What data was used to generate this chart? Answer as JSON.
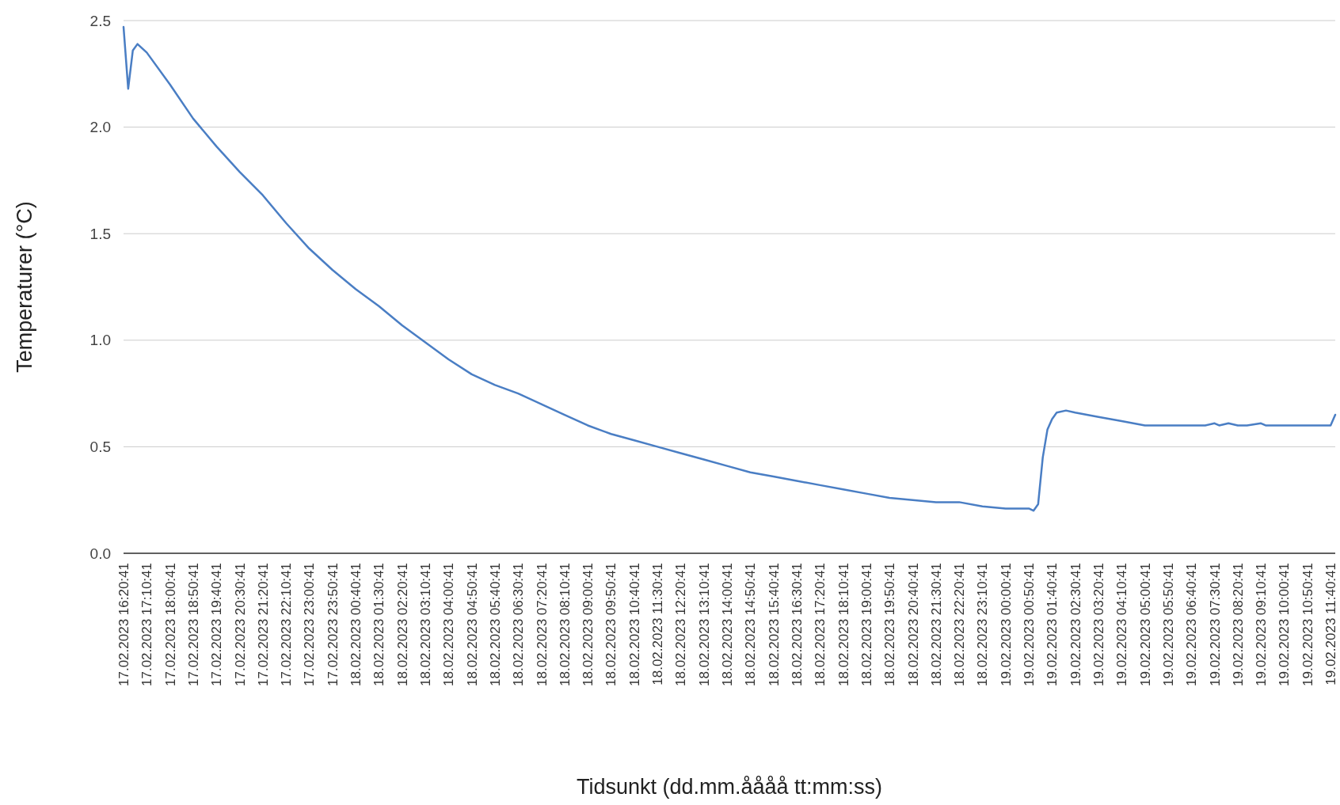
{
  "chart_data": {
    "type": "line",
    "xlabel": "Tidsunkt (dd.mm.åååå tt:mm:ss)",
    "ylabel": "Temperaturer (°C)",
    "x": [
      "2023-02-17T16:20:41",
      "2023-02-17T16:30:41",
      "2023-02-17T16:40:41",
      "2023-02-17T16:50:41",
      "2023-02-17T17:10:41",
      "2023-02-17T18:00:41",
      "2023-02-17T18:50:41",
      "2023-02-17T19:40:41",
      "2023-02-17T20:30:41",
      "2023-02-17T21:20:41",
      "2023-02-17T22:10:41",
      "2023-02-17T23:00:41",
      "2023-02-17T23:50:41",
      "2023-02-18T00:40:41",
      "2023-02-18T01:30:41",
      "2023-02-18T02:20:41",
      "2023-02-18T03:10:41",
      "2023-02-18T04:00:41",
      "2023-02-18T04:50:41",
      "2023-02-18T05:40:41",
      "2023-02-18T06:30:41",
      "2023-02-18T07:20:41",
      "2023-02-18T08:10:41",
      "2023-02-18T09:00:41",
      "2023-02-18T09:50:41",
      "2023-02-18T10:40:41",
      "2023-02-18T11:30:41",
      "2023-02-18T12:20:41",
      "2023-02-18T13:10:41",
      "2023-02-18T14:00:41",
      "2023-02-18T14:50:41",
      "2023-02-18T15:40:41",
      "2023-02-18T16:30:41",
      "2023-02-18T17:20:41",
      "2023-02-18T18:10:41",
      "2023-02-18T19:00:41",
      "2023-02-18T19:50:41",
      "2023-02-18T20:40:41",
      "2023-02-18T21:30:41",
      "2023-02-18T22:20:41",
      "2023-02-18T23:10:41",
      "2023-02-19T00:00:41",
      "2023-02-19T00:50:41",
      "2023-02-19T01:00:41",
      "2023-02-19T01:10:41",
      "2023-02-19T01:20:41",
      "2023-02-19T01:30:41",
      "2023-02-19T01:40:41",
      "2023-02-19T01:50:41",
      "2023-02-19T02:10:41",
      "2023-02-19T02:30:41",
      "2023-02-19T03:20:41",
      "2023-02-19T04:10:41",
      "2023-02-19T05:00:41",
      "2023-02-19T07:10:41",
      "2023-02-19T07:30:41",
      "2023-02-19T07:40:41",
      "2023-02-19T08:00:41",
      "2023-02-19T08:20:41",
      "2023-02-19T08:40:41",
      "2023-02-19T09:10:41",
      "2023-02-19T09:20:41",
      "2023-02-19T11:40:41",
      "2023-02-19T11:50:41"
    ],
    "series": [
      {
        "color": "#4a7ec4",
        "values": [
          2.47,
          2.18,
          2.36,
          2.39,
          2.35,
          2.2,
          2.04,
          1.91,
          1.79,
          1.68,
          1.55,
          1.43,
          1.33,
          1.24,
          1.16,
          1.07,
          0.99,
          0.91,
          0.84,
          0.79,
          0.75,
          0.7,
          0.65,
          0.6,
          0.56,
          0.53,
          0.5,
          0.47,
          0.44,
          0.41,
          0.38,
          0.36,
          0.34,
          0.32,
          0.3,
          0.28,
          0.26,
          0.25,
          0.24,
          0.24,
          0.22,
          0.21,
          0.21,
          0.2,
          0.23,
          0.45,
          0.58,
          0.63,
          0.66,
          0.67,
          0.66,
          0.64,
          0.62,
          0.6,
          0.6,
          0.61,
          0.6,
          0.61,
          0.6,
          0.6,
          0.61,
          0.6,
          0.6,
          0.65
        ]
      }
    ],
    "xlim": [
      "2023-02-17T16:20:41",
      "2023-02-19T11:50:41"
    ],
    "xticks": [
      {
        "value": "2023-02-17T16:20:41",
        "label": "17.02.2023 16:20:41"
      },
      {
        "value": "2023-02-17T17:10:41",
        "label": "17.02.2023 17:10:41"
      },
      {
        "value": "2023-02-17T18:00:41",
        "label": "17.02.2023 18:00:41"
      },
      {
        "value": "2023-02-17T18:50:41",
        "label": "17.02.2023 18:50:41"
      },
      {
        "value": "2023-02-17T19:40:41",
        "label": "17.02.2023 19:40:41"
      },
      {
        "value": "2023-02-17T20:30:41",
        "label": "17.02.2023 20:30:41"
      },
      {
        "value": "2023-02-17T21:20:41",
        "label": "17.02.2023 21:20:41"
      },
      {
        "value": "2023-02-17T22:10:41",
        "label": "17.02.2023 22:10:41"
      },
      {
        "value": "2023-02-17T23:00:41",
        "label": "17.02.2023 23:00:41"
      },
      {
        "value": "2023-02-17T23:50:41",
        "label": "17.02.2023 23:50:41"
      },
      {
        "value": "2023-02-18T00:40:41",
        "label": "18.02.2023 00:40:41"
      },
      {
        "value": "2023-02-18T01:30:41",
        "label": "18.02.2023 01:30:41"
      },
      {
        "value": "2023-02-18T02:20:41",
        "label": "18.02.2023 02:20:41"
      },
      {
        "value": "2023-02-18T03:10:41",
        "label": "18.02.2023 03:10:41"
      },
      {
        "value": "2023-02-18T04:00:41",
        "label": "18.02.2023 04:00:41"
      },
      {
        "value": "2023-02-18T04:50:41",
        "label": "18.02.2023 04:50:41"
      },
      {
        "value": "2023-02-18T05:40:41",
        "label": "18.02.2023 05:40:41"
      },
      {
        "value": "2023-02-18T06:30:41",
        "label": "18.02.2023 06:30:41"
      },
      {
        "value": "2023-02-18T07:20:41",
        "label": "18.02.2023 07:20:41"
      },
      {
        "value": "2023-02-18T08:10:41",
        "label": "18.02.2023 08:10:41"
      },
      {
        "value": "2023-02-18T09:00:41",
        "label": "18.02.2023 09:00:41"
      },
      {
        "value": "2023-02-18T09:50:41",
        "label": "18.02.2023 09:50:41"
      },
      {
        "value": "2023-02-18T10:40:41",
        "label": "18.02.2023 10:40:41"
      },
      {
        "value": "2023-02-18T11:30:41",
        "label": "18.02.2023 11:30:41"
      },
      {
        "value": "2023-02-18T12:20:41",
        "label": "18.02.2023 12:20:41"
      },
      {
        "value": "2023-02-18T13:10:41",
        "label": "18.02.2023 13:10:41"
      },
      {
        "value": "2023-02-18T14:00:41",
        "label": "18.02.2023 14:00:41"
      },
      {
        "value": "2023-02-18T14:50:41",
        "label": "18.02.2023 14:50:41"
      },
      {
        "value": "2023-02-18T15:40:41",
        "label": "18.02.2023 15:40:41"
      },
      {
        "value": "2023-02-18T16:30:41",
        "label": "18.02.2023 16:30:41"
      },
      {
        "value": "2023-02-18T17:20:41",
        "label": "18.02.2023 17:20:41"
      },
      {
        "value": "2023-02-18T18:10:41",
        "label": "18.02.2023 18:10:41"
      },
      {
        "value": "2023-02-18T19:00:41",
        "label": "18.02.2023 19:00:41"
      },
      {
        "value": "2023-02-18T19:50:41",
        "label": "18.02.2023 19:50:41"
      },
      {
        "value": "2023-02-18T20:40:41",
        "label": "18.02.2023 20:40:41"
      },
      {
        "value": "2023-02-18T21:30:41",
        "label": "18.02.2023 21:30:41"
      },
      {
        "value": "2023-02-18T22:20:41",
        "label": "18.02.2023 22:20:41"
      },
      {
        "value": "2023-02-18T23:10:41",
        "label": "18.02.2023 23:10:41"
      },
      {
        "value": "2023-02-19T00:00:41",
        "label": "19.02.2023 00:00:41"
      },
      {
        "value": "2023-02-19T00:50:41",
        "label": "19.02.2023 00:50:41"
      },
      {
        "value": "2023-02-19T01:40:41",
        "label": "19.02.2023 01:40:41"
      },
      {
        "value": "2023-02-19T02:30:41",
        "label": "19.02.2023 02:30:41"
      },
      {
        "value": "2023-02-19T03:20:41",
        "label": "19.02.2023 03:20:41"
      },
      {
        "value": "2023-02-19T04:10:41",
        "label": "19.02.2023 04:10:41"
      },
      {
        "value": "2023-02-19T05:00:41",
        "label": "19.02.2023 05:00:41"
      },
      {
        "value": "2023-02-19T05:50:41",
        "label": "19.02.2023 05:50:41"
      },
      {
        "value": "2023-02-19T06:40:41",
        "label": "19.02.2023 06:40:41"
      },
      {
        "value": "2023-02-19T07:30:41",
        "label": "19.02.2023 07:30:41"
      },
      {
        "value": "2023-02-19T08:20:41",
        "label": "19.02.2023 08:20:41"
      },
      {
        "value": "2023-02-19T09:10:41",
        "label": "19.02.2023 09:10:41"
      },
      {
        "value": "2023-02-19T10:00:41",
        "label": "19.02.2023 10:00:41"
      },
      {
        "value": "2023-02-19T10:50:41",
        "label": "19.02.2023 10:50:41"
      },
      {
        "value": "2023-02-19T11:40:41",
        "label": "19.02.2023 11:40:41"
      }
    ],
    "ylim": [
      0,
      2.5
    ],
    "yticks": [
      {
        "value": 0,
        "label": "0.0"
      },
      {
        "value": 0.5,
        "label": "0.5"
      },
      {
        "value": 1,
        "label": "1.0"
      },
      {
        "value": 1.5,
        "label": "1.5"
      },
      {
        "value": 2,
        "label": "2.0"
      },
      {
        "value": 2.5,
        "label": "2.5"
      }
    ],
    "grid": "y",
    "marker": "none",
    "line_style": "solid"
  }
}
